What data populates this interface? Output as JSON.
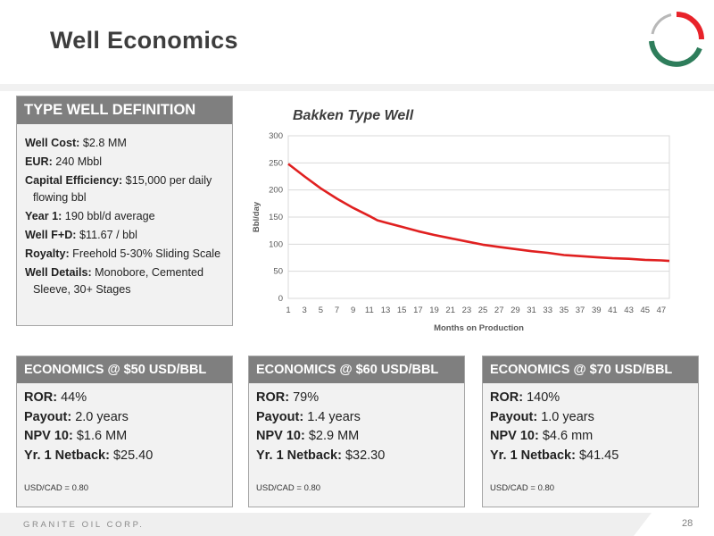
{
  "header": {
    "title": "Well Economics"
  },
  "type_well": {
    "heading": "TYPE WELL DEFINITION",
    "items": [
      {
        "label": "Well Cost:",
        "value": " $2.8 MM"
      },
      {
        "label": "EUR:",
        "value": " 240 Mbbl"
      },
      {
        "label": "Capital Efficiency:",
        "value": " $15,000 per daily flowing bbl"
      },
      {
        "label": "Year 1:",
        "value": " 190 bbl/d average"
      },
      {
        "label": "Well F+D:",
        "value": " $11.67 / bbl"
      },
      {
        "label": "Royalty:",
        "value": "  Freehold 5-30% Sliding Scale"
      },
      {
        "label": "Well Details:",
        "value": " Monobore, Cemented Sleeve, 30+ Stages"
      }
    ]
  },
  "economics": [
    {
      "heading": "ECONOMICS @ $50 USD/BBL",
      "ror_label": "ROR:",
      "ror": " 44%",
      "payout_label": "Payout:",
      "payout": " 2.0 years",
      "npv_label": "NPV 10:",
      "npv": " $1.6 MM",
      "netback_label": "Yr. 1 Netback:",
      "netback": " $25.40",
      "fx": "USD/CAD = 0.80"
    },
    {
      "heading": "ECONOMICS @ $60 USD/BBL",
      "ror_label": "ROR:",
      "ror": " 79%",
      "payout_label": "Payout:",
      "payout": " 1.4 years",
      "npv_label": "NPV 10:",
      "npv": " $2.9 MM",
      "netback_label": "Yr. 1 Netback:",
      "netback": " $32.30",
      "fx": "USD/CAD = 0.80"
    },
    {
      "heading": "ECONOMICS @ $70 USD/BBL",
      "ror_label": "ROR:",
      "ror": " 140%",
      "payout_label": "Payout:",
      "payout": " 1.0 years",
      "npv_label": "NPV 10:",
      "npv": " $4.6 mm",
      "netback_label": "Yr. 1 Netback:",
      "netback": " $41.45",
      "fx": "USD/CAD = 0.80"
    }
  ],
  "chart_data": {
    "type": "line",
    "title": "Bakken Type Well",
    "xlabel": "Months on Production",
    "ylabel": "Bbl/day",
    "ylim": [
      0,
      300
    ],
    "yticks": [
      0,
      50,
      100,
      150,
      200,
      250,
      300
    ],
    "xticks": [
      1,
      3,
      5,
      7,
      9,
      11,
      13,
      15,
      17,
      19,
      21,
      23,
      25,
      27,
      29,
      31,
      33,
      35,
      37,
      39,
      41,
      43,
      45,
      47
    ],
    "xlim": [
      1,
      48
    ],
    "grid": true,
    "series": [
      {
        "color": "#e02020",
        "x": [
          1,
          3,
          5,
          7,
          9,
          11,
          12,
          13,
          15,
          17,
          19,
          21,
          23,
          25,
          27,
          29,
          31,
          33,
          35,
          37,
          39,
          41,
          43,
          45,
          47,
          48
        ],
        "y": [
          248,
          225,
          203,
          184,
          167,
          152,
          144,
          140,
          132,
          124,
          117,
          111,
          105,
          99,
          95,
          91,
          87,
          84,
          80,
          78,
          76,
          74,
          73,
          71,
          70,
          69
        ]
      }
    ]
  },
  "logo": {
    "red": "#e8232a",
    "green": "#2e7d5b"
  },
  "footer": {
    "company": "GRANITE OIL CORP.",
    "page": "28"
  }
}
